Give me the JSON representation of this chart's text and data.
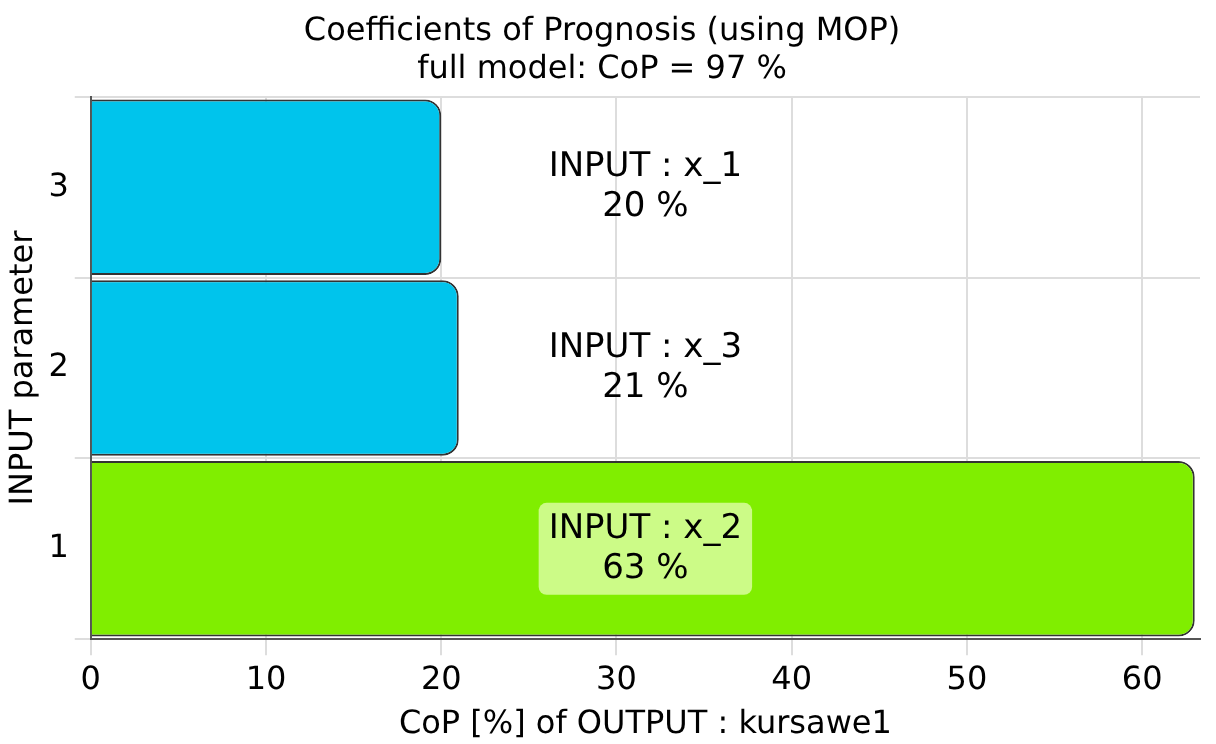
{
  "chart_data": {
    "type": "bar",
    "orientation": "horizontal",
    "title": "Coefficients of Prognosis (using MOP)",
    "subtitle": "full model: CoP = 97 %",
    "xlabel": "CoP [%] of OUTPUT : kursawe1",
    "ylabel": "INPUT parameter",
    "categories": [
      "3",
      "2",
      "1"
    ],
    "values": [
      20,
      21,
      63
    ],
    "colors": [
      "#00c4ec",
      "#00c4ec",
      "#80ee00"
    ],
    "value_labels": [
      "INPUT : x_1\n20 %",
      "INPUT : x_3\n21 %",
      "INPUT : x_2\n63 %"
    ],
    "xlim": [
      0,
      63.3
    ],
    "xticks": [
      0,
      10,
      20,
      30,
      40,
      50,
      60
    ],
    "grid": true
  }
}
